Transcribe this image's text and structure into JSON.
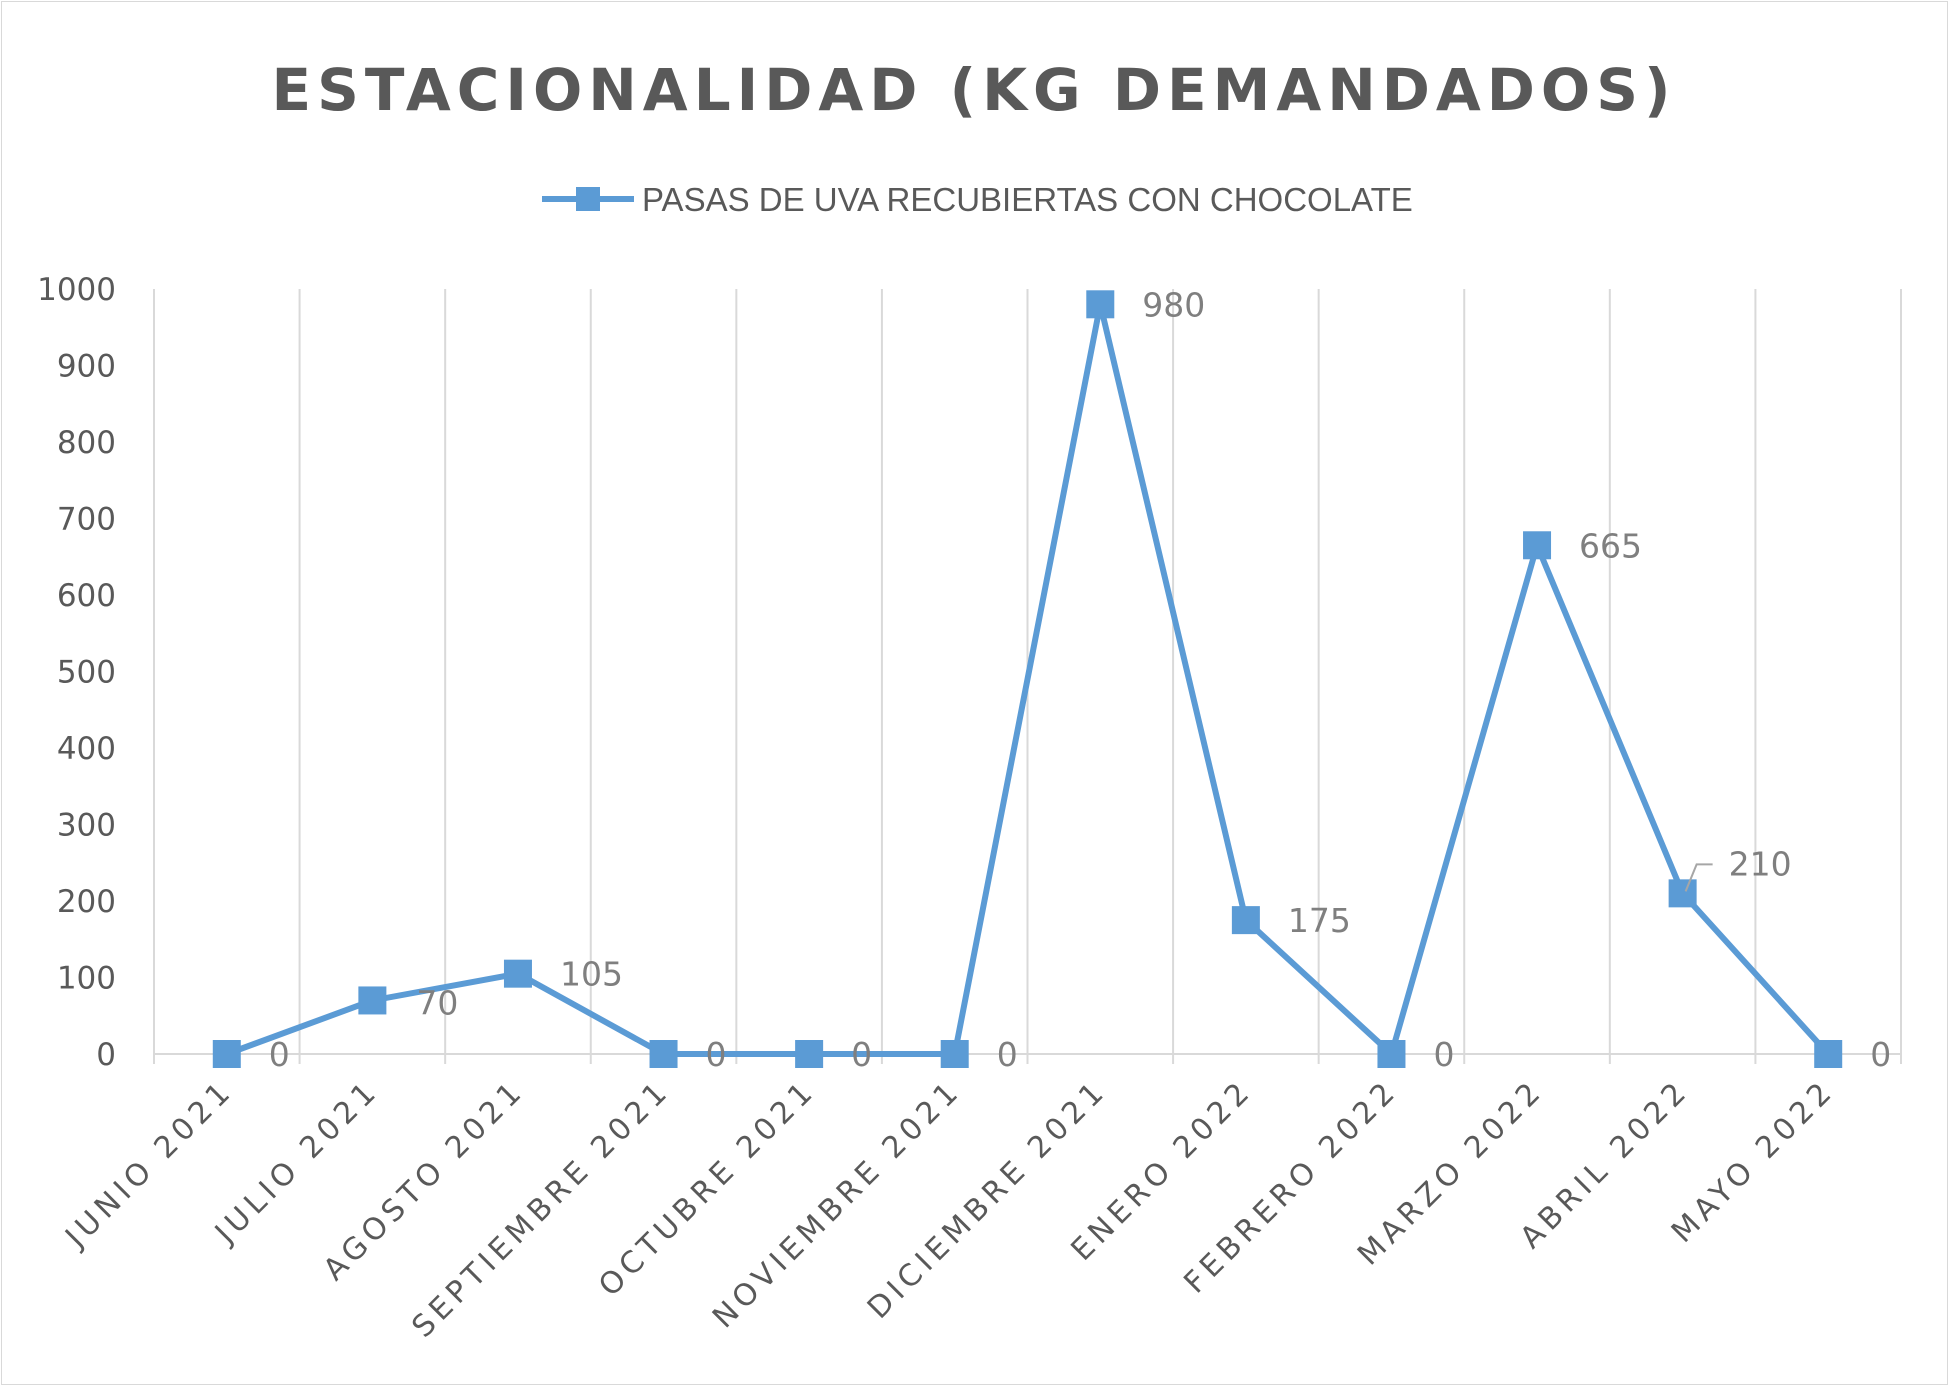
{
  "chart_data": {
    "type": "line",
    "title": "ESTACIONALIDAD (KG DEMANDADOS)",
    "xlabel": "",
    "ylabel": "",
    "categories": [
      "JUNIO 2021",
      "JULIO 2021",
      "AGOSTO 2021",
      "SEPTIEMBRE 2021",
      "OCTUBRE 2021",
      "NOVIEMBRE 2021",
      "DICIEMBRE 2021",
      "ENERO 2022",
      "FEBRERO 2022",
      "MARZO 2022",
      "ABRIL 2022",
      "MAYO 2022"
    ],
    "series": [
      {
        "name": "PASAS DE UVA RECUBIERTAS CON CHOCOLATE",
        "values": [
          0,
          70,
          105,
          0,
          0,
          0,
          980,
          175,
          0,
          665,
          210,
          0
        ],
        "data_labels": [
          "0",
          "70",
          "105",
          "0",
          "0",
          "0",
          "980",
          "175",
          "0",
          "665",
          "210",
          "0"
        ],
        "color": "#5b9bd5",
        "marker": "square"
      }
    ],
    "ylim": [
      0,
      1000
    ],
    "yticks": [
      "0",
      "100",
      "200",
      "300",
      "400",
      "500",
      "600",
      "700",
      "800",
      "900",
      "1000"
    ],
    "grid": "vertical",
    "legend": "top-center"
  }
}
